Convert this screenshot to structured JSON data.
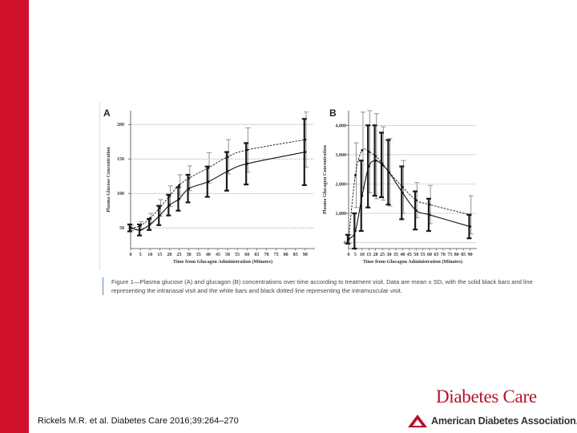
{
  "slide": {
    "citation": "Rickels M.R. et al. Diabetes Care 2016;39:264–270",
    "journal": "Diabetes Care",
    "publisher": "American Diabetes Association.",
    "accent_color": "#d0112b",
    "caption": "Figure 1—Plasma glucose (A) and glucagon (B) concentrations over time according to treatment visit. Data are mean ± SD, with the solid black bars and line representing the intranasal visit and the white bars and black dotted line representing the intramuscular visit."
  },
  "chart_data": [
    {
      "type": "line",
      "panel": "A",
      "xlabel": "Time from Glucagon Administration (Minutes)",
      "ylabel": "Plasma Glucose Concentration",
      "x": [
        0,
        5,
        10,
        15,
        20,
        25,
        30,
        40,
        50,
        60,
        90
      ],
      "x_tick_labels": [
        "0",
        "5",
        "10",
        "15",
        "20",
        "25",
        "30",
        "35",
        "40",
        "45",
        "50",
        "55",
        "60",
        "65",
        "70",
        "75",
        "80",
        "85",
        "90"
      ],
      "y_ticks": [
        50,
        100,
        150,
        200
      ],
      "y_tick_labels": [
        "50",
        "100",
        "150",
        "200"
      ],
      "ylim": [
        20,
        220
      ],
      "grid": true,
      "series": [
        {
          "name": "Intranasal",
          "style": "solid",
          "bars": "black",
          "mean": [
            50,
            47,
            55,
            68,
            83,
            92,
            107,
            117,
            132,
            143,
            160
          ],
          "sd": [
            5,
            8,
            8,
            14,
            15,
            17,
            20,
            22,
            28,
            30,
            48
          ]
        },
        {
          "name": "Intramuscular",
          "style": "dotted",
          "bars": "white",
          "mean": [
            50,
            53,
            64,
            79,
            96,
            112,
            122,
            137,
            153,
            163,
            178
          ],
          "sd": [
            4,
            6,
            7,
            12,
            15,
            15,
            18,
            22,
            25,
            32,
            40
          ]
        }
      ]
    },
    {
      "type": "line",
      "panel": "B",
      "xlabel": "Time from Glucagon Administration (Minutes)",
      "ylabel": "Plasma Glucagon Concentration",
      "x": [
        0,
        5,
        10,
        15,
        20,
        25,
        30,
        40,
        50,
        60,
        90
      ],
      "x_tick_labels": [
        "0",
        "5",
        "10",
        "15",
        "20",
        "25",
        "30",
        "35",
        "40",
        "45",
        "50",
        "55",
        "60",
        "65",
        "70",
        "75",
        "80",
        "85",
        "90"
      ],
      "y_ticks": [
        0,
        1000,
        2000,
        3000,
        4000
      ],
      "y_tick_labels": [
        "0",
        "1,000",
        "2,000",
        "3,000",
        "4,000"
      ],
      "ylim": [
        -200,
        4500
      ],
      "grid": true,
      "series": [
        {
          "name": "Intranasal",
          "style": "solid",
          "bars": "black",
          "mean": [
            120,
            400,
            1600,
            2600,
            2800,
            2650,
            2400,
            1700,
            1100,
            950,
            550
          ],
          "sd": [
            150,
            600,
            1200,
            1400,
            1200,
            1100,
            1100,
            900,
            650,
            550,
            400
          ]
        },
        {
          "name": "Intramuscular",
          "style": "dotted",
          "bars": "white",
          "mean": [
            120,
            2300,
            3150,
            3100,
            2950,
            2700,
            2400,
            1900,
            1450,
            1300,
            950
          ],
          "sd": [
            150,
            1100,
            1300,
            1400,
            1450,
            1250,
            1150,
            900,
            600,
            650,
            650
          ]
        }
      ]
    }
  ]
}
